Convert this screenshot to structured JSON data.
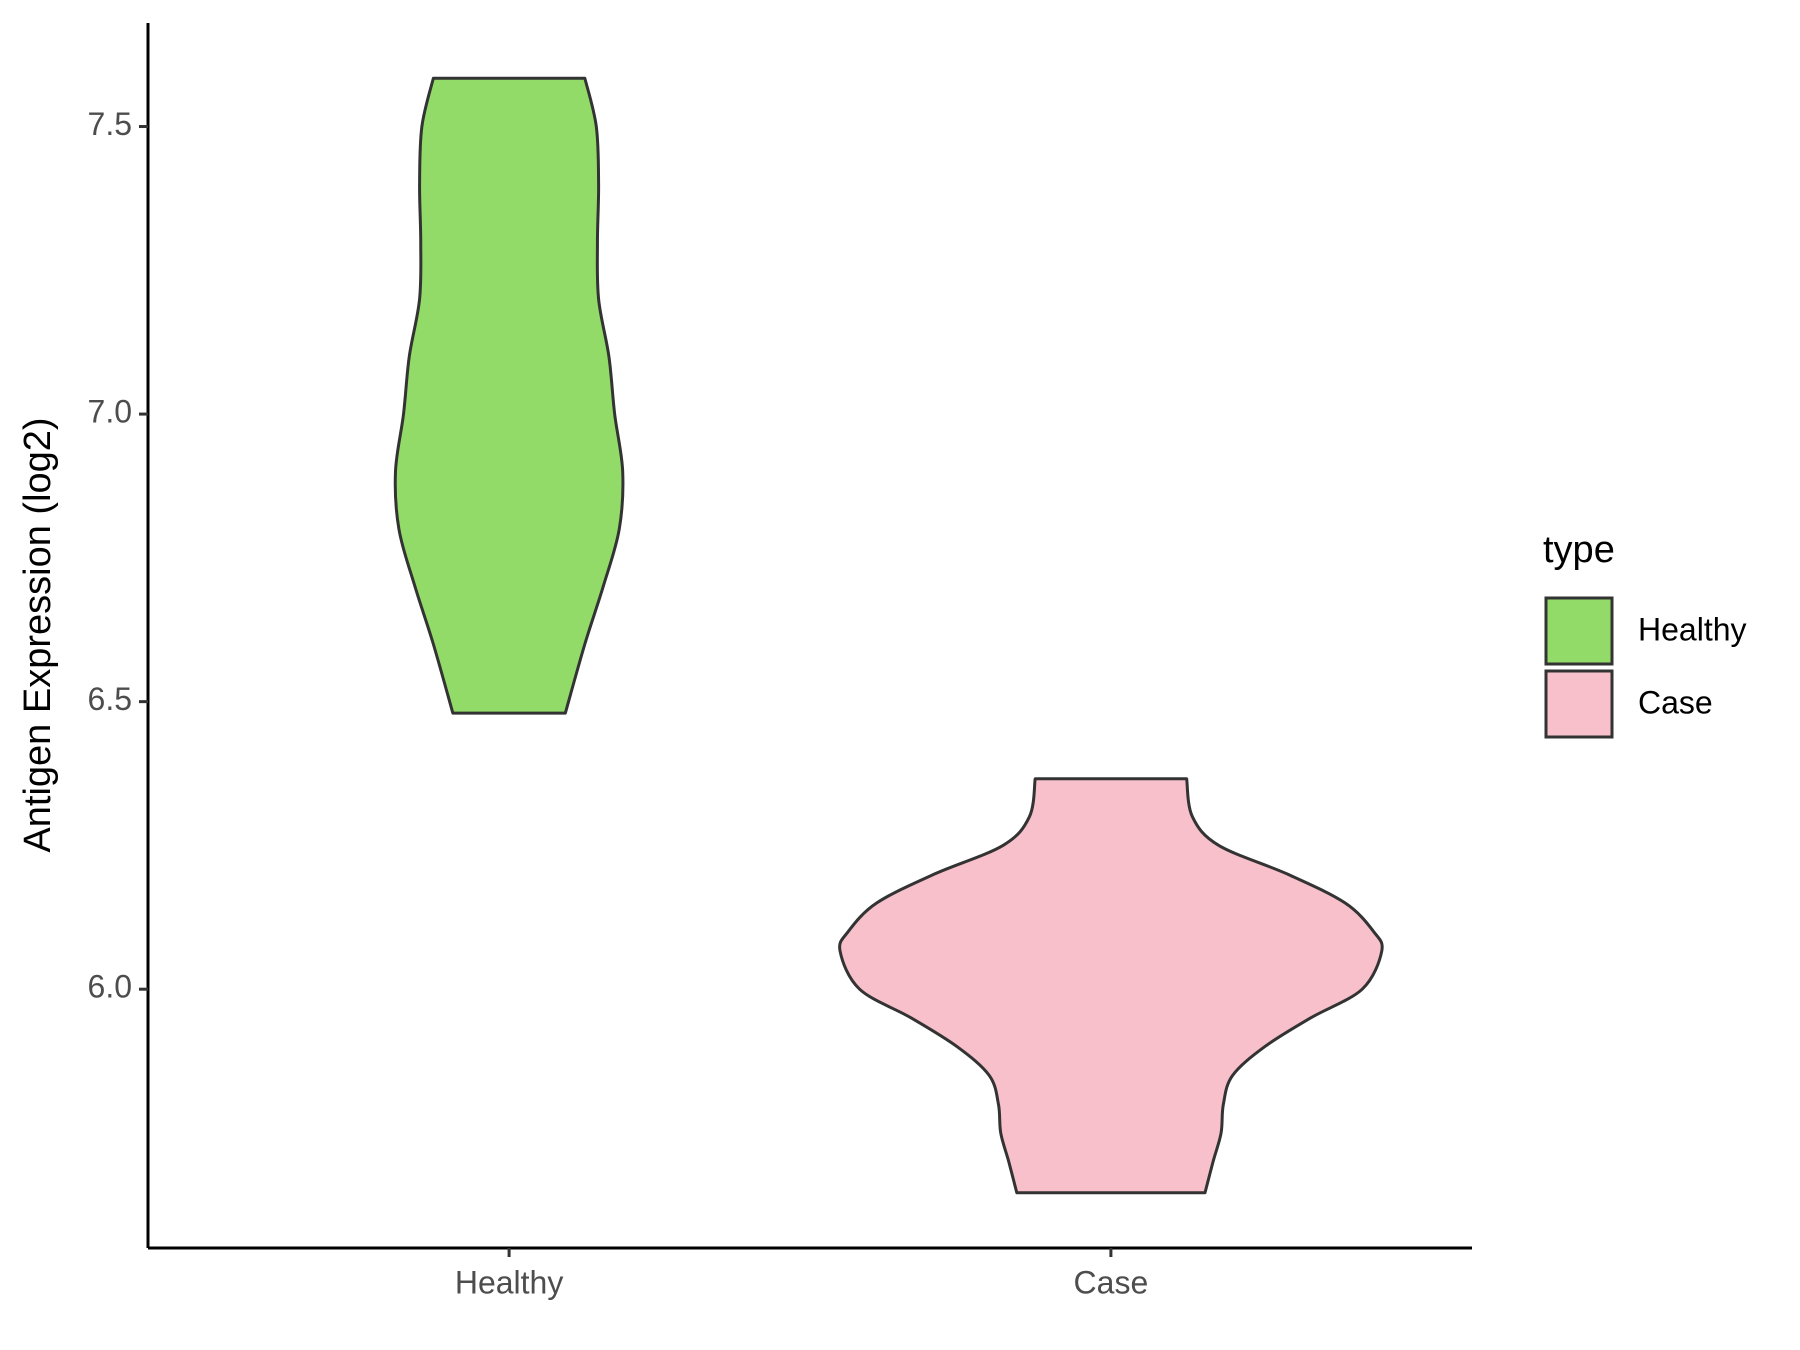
{
  "chart_data": {
    "type": "violin",
    "ylabel": "Antigen Expression (log2)",
    "categories": [
      "Healthy",
      "Case"
    ],
    "legend_title": "type",
    "legend": "right",
    "ylim": [
      5.55,
      7.68
    ],
    "yticks": [
      {
        "value": 6,
        "label": "6.0"
      },
      {
        "value": 6.5,
        "label": "6.5"
      },
      {
        "value": 7,
        "label": "7.0"
      },
      {
        "value": 7.5,
        "label": "7.5"
      }
    ],
    "series": [
      {
        "name": "Healthy",
        "color": "#93db69",
        "values": [
          7.584,
          7.5,
          7.4,
          7.3,
          7.2,
          7.1,
          7.0,
          6.9,
          6.8,
          6.7,
          6.6,
          6.48
        ],
        "density": [
          0.66,
          0.76,
          0.78,
          0.77,
          0.78,
          0.87,
          0.92,
          0.99,
          0.96,
          0.82,
          0.66,
          0.49
        ]
      },
      {
        "name": "Case",
        "color": "#f7c0cb",
        "values": [
          6.366,
          6.3,
          6.25,
          6.2,
          6.15,
          6.1,
          6.066,
          6.0,
          5.95,
          5.9,
          5.85,
          5.8,
          5.75,
          5.7,
          5.646
        ],
        "density": [
          0.66,
          0.71,
          0.94,
          1.54,
          2.04,
          2.29,
          2.36,
          2.19,
          1.74,
          1.34,
          1.06,
          0.98,
          0.96,
          0.89,
          0.82
        ]
      }
    ]
  }
}
